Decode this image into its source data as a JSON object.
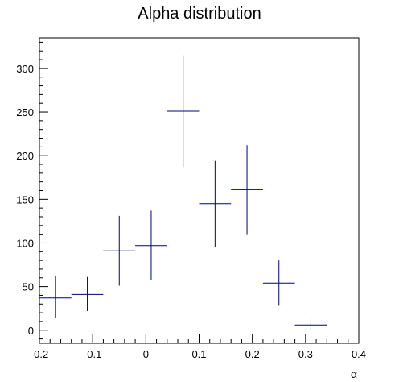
{
  "chart_data": {
    "type": "scatter",
    "title": "Alpha distribution",
    "xlabel": "α",
    "ylabel": "",
    "xlim": [
      -0.2,
      0.4
    ],
    "ylim": [
      -15,
      335
    ],
    "xticks": [
      "-0.2",
      "-0.1",
      "0",
      "0.1",
      "0.2",
      "0.3",
      "0.4"
    ],
    "yticks": [
      "0",
      "50",
      "100",
      "150",
      "200",
      "250",
      "300"
    ],
    "grid": false,
    "series": [
      {
        "color": "#00007f",
        "points": [
          {
            "x": -0.17,
            "xerr": 0.03,
            "y": 37,
            "yerr_low": 23,
            "yerr_high": 25
          },
          {
            "x": -0.11,
            "xerr": 0.03,
            "y": 41,
            "yerr_low": 19,
            "yerr_high": 20
          },
          {
            "x": -0.05,
            "xerr": 0.03,
            "y": 91,
            "yerr_low": 40,
            "yerr_high": 40
          },
          {
            "x": 0.01,
            "xerr": 0.03,
            "y": 97,
            "yerr_low": 39,
            "yerr_high": 40
          },
          {
            "x": 0.07,
            "xerr": 0.03,
            "y": 251,
            "yerr_low": 64,
            "yerr_high": 64
          },
          {
            "x": 0.13,
            "xerr": 0.03,
            "y": 145,
            "yerr_low": 50,
            "yerr_high": 49
          },
          {
            "x": 0.19,
            "xerr": 0.03,
            "y": 161,
            "yerr_low": 51,
            "yerr_high": 51
          },
          {
            "x": 0.25,
            "xerr": 0.03,
            "y": 54,
            "yerr_low": 26,
            "yerr_high": 26
          },
          {
            "x": 0.31,
            "xerr": 0.03,
            "y": 6,
            "yerr_low": 7,
            "yerr_high": 7
          }
        ]
      }
    ]
  }
}
